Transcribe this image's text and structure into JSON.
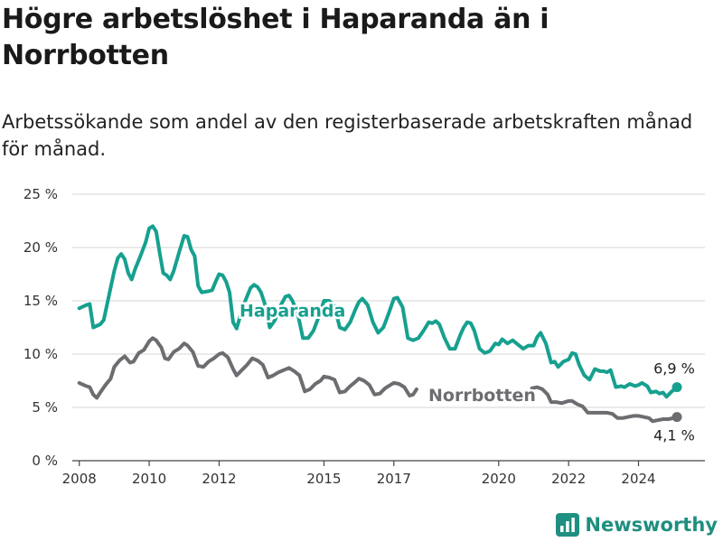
{
  "title": "Högre arbetslöshet i Haparanda än i Norrbotten",
  "subtitle": "Arbetssökande som andel av den registerbaserade arbetskraften månad för månad.",
  "brand": {
    "name": "Newsworthy",
    "icon": "bar-chart-logo-icon",
    "color": "#1e8f80"
  },
  "chart_data": {
    "type": "line",
    "title": "Högre arbetslöshet i Haparanda än i Norrbotten",
    "subtitle": "Arbetssökande som andel av den registerbaserade arbetskraften månad för månad.",
    "xlabel": "",
    "ylabel": "",
    "xlim": [
      2007.8,
      2025.9
    ],
    "ylim": [
      0,
      25
    ],
    "x_ticks": [
      2008,
      2010,
      2012,
      2015,
      2017,
      2020,
      2022,
      2024
    ],
    "y_ticks": [
      {
        "value": 0,
        "label": "0 %"
      },
      {
        "value": 5,
        "label": "5 %"
      },
      {
        "value": 10,
        "label": "10 %"
      },
      {
        "value": 15,
        "label": "15 %"
      },
      {
        "value": 20,
        "label": "20 %"
      },
      {
        "value": 25,
        "label": "25 %"
      }
    ],
    "grid": "horizontal",
    "legend": "direct labels",
    "series": [
      {
        "name": "Haparanda",
        "color": "#16a08f",
        "end_label": "6,9 %",
        "points": [
          [
            2008.0,
            14.3
          ],
          [
            2008.2,
            14.6
          ],
          [
            2008.3,
            14.7
          ],
          [
            2008.4,
            12.5
          ],
          [
            2008.6,
            12.8
          ],
          [
            2008.7,
            13.2
          ],
          [
            2008.85,
            15.5
          ],
          [
            2009.0,
            17.8
          ],
          [
            2009.1,
            19.0
          ],
          [
            2009.2,
            19.4
          ],
          [
            2009.3,
            18.9
          ],
          [
            2009.4,
            17.6
          ],
          [
            2009.5,
            17.0
          ],
          [
            2009.6,
            18.0
          ],
          [
            2009.75,
            19.2
          ],
          [
            2009.9,
            20.5
          ],
          [
            2010.0,
            21.8
          ],
          [
            2010.1,
            22.0
          ],
          [
            2010.2,
            21.5
          ],
          [
            2010.3,
            19.5
          ],
          [
            2010.4,
            17.6
          ],
          [
            2010.5,
            17.4
          ],
          [
            2010.6,
            17.0
          ],
          [
            2010.7,
            17.8
          ],
          [
            2010.85,
            19.5
          ],
          [
            2011.0,
            21.1
          ],
          [
            2011.1,
            21.0
          ],
          [
            2011.2,
            19.8
          ],
          [
            2011.3,
            19.2
          ],
          [
            2011.4,
            16.4
          ],
          [
            2011.5,
            15.8
          ],
          [
            2011.7,
            15.9
          ],
          [
            2011.8,
            16.0
          ],
          [
            2011.9,
            16.8
          ],
          [
            2012.0,
            17.5
          ],
          [
            2012.1,
            17.4
          ],
          [
            2012.2,
            16.8
          ],
          [
            2012.3,
            15.8
          ],
          [
            2012.4,
            13.0
          ],
          [
            2012.5,
            12.4
          ],
          [
            2012.6,
            13.5
          ],
          [
            2012.75,
            15.0
          ],
          [
            2012.9,
            16.2
          ],
          [
            2013.0,
            16.5
          ],
          [
            2013.1,
            16.3
          ],
          [
            2013.2,
            15.8
          ],
          [
            2013.3,
            14.8
          ],
          [
            2013.45,
            12.5
          ],
          [
            2013.6,
            13.2
          ],
          [
            2013.75,
            14.5
          ],
          [
            2013.9,
            15.4
          ],
          [
            2014.0,
            15.5
          ],
          [
            2014.1,
            15.0
          ],
          [
            2014.25,
            13.8
          ],
          [
            2014.4,
            11.5
          ],
          [
            2014.55,
            11.5
          ],
          [
            2014.7,
            12.2
          ],
          [
            2014.85,
            13.5
          ],
          [
            2015.0,
            15.0
          ],
          [
            2015.15,
            15.0
          ],
          [
            2015.3,
            14.5
          ],
          [
            2015.45,
            12.5
          ],
          [
            2015.6,
            12.3
          ],
          [
            2015.75,
            13.0
          ],
          [
            2015.9,
            14.2
          ],
          [
            2016.0,
            14.9
          ],
          [
            2016.1,
            15.2
          ],
          [
            2016.25,
            14.6
          ],
          [
            2016.4,
            13.0
          ],
          [
            2016.55,
            12.0
          ],
          [
            2016.7,
            12.5
          ],
          [
            2016.85,
            13.8
          ],
          [
            2017.0,
            15.2
          ],
          [
            2017.1,
            15.3
          ],
          [
            2017.25,
            14.4
          ],
          [
            2017.4,
            11.5
          ],
          [
            2017.55,
            11.3
          ],
          [
            2017.7,
            11.5
          ],
          [
            2017.85,
            12.2
          ],
          [
            2018.0,
            13.0
          ],
          [
            2018.1,
            12.9
          ],
          [
            2018.2,
            13.1
          ],
          [
            2018.3,
            12.8
          ],
          [
            2018.45,
            11.5
          ],
          [
            2018.6,
            10.5
          ],
          [
            2018.75,
            10.5
          ],
          [
            2018.9,
            11.8
          ],
          [
            2019.0,
            12.5
          ],
          [
            2019.1,
            13.0
          ],
          [
            2019.2,
            12.9
          ],
          [
            2019.3,
            12.2
          ],
          [
            2019.45,
            10.5
          ],
          [
            2019.6,
            10.1
          ],
          [
            2019.75,
            10.3
          ],
          [
            2019.9,
            11.0
          ],
          [
            2020.0,
            10.9
          ],
          [
            2020.1,
            11.4
          ],
          [
            2020.25,
            11.0
          ],
          [
            2020.4,
            11.3
          ],
          [
            2020.55,
            10.9
          ],
          [
            2020.7,
            10.5
          ],
          [
            2020.85,
            10.8
          ],
          [
            2021.0,
            10.8
          ],
          [
            2021.1,
            11.6
          ],
          [
            2021.2,
            12.0
          ],
          [
            2021.35,
            11.0
          ],
          [
            2021.5,
            9.2
          ],
          [
            2021.6,
            9.3
          ],
          [
            2021.7,
            8.8
          ],
          [
            2021.85,
            9.3
          ],
          [
            2022.0,
            9.5
          ],
          [
            2022.1,
            10.1
          ],
          [
            2022.2,
            10.0
          ],
          [
            2022.3,
            9.0
          ],
          [
            2022.45,
            8.0
          ],
          [
            2022.6,
            7.6
          ],
          [
            2022.75,
            8.6
          ],
          [
            2022.9,
            8.4
          ],
          [
            2023.0,
            8.4
          ],
          [
            2023.1,
            8.3
          ],
          [
            2023.2,
            8.5
          ],
          [
            2023.35,
            6.9
          ],
          [
            2023.5,
            7.0
          ],
          [
            2023.6,
            6.9
          ],
          [
            2023.75,
            7.2
          ],
          [
            2023.9,
            7.0
          ],
          [
            2024.0,
            7.1
          ],
          [
            2024.1,
            7.3
          ],
          [
            2024.25,
            7.0
          ],
          [
            2024.35,
            6.4
          ],
          [
            2024.5,
            6.5
          ],
          [
            2024.6,
            6.3
          ],
          [
            2024.7,
            6.4
          ],
          [
            2024.8,
            6.0
          ],
          [
            2024.95,
            6.5
          ],
          [
            2025.1,
            6.9
          ]
        ]
      },
      {
        "name": "Norrbotten",
        "color": "#6d6c71",
        "end_label": "4,1 %",
        "points": [
          [
            2008.0,
            7.3
          ],
          [
            2008.2,
            7.0
          ],
          [
            2008.3,
            6.9
          ],
          [
            2008.4,
            6.2
          ],
          [
            2008.5,
            5.9
          ],
          [
            2008.6,
            6.4
          ],
          [
            2008.75,
            7.1
          ],
          [
            2008.9,
            7.7
          ],
          [
            2009.0,
            8.8
          ],
          [
            2009.15,
            9.4
          ],
          [
            2009.3,
            9.8
          ],
          [
            2009.45,
            9.2
          ],
          [
            2009.55,
            9.3
          ],
          [
            2009.7,
            10.1
          ],
          [
            2009.85,
            10.4
          ],
          [
            2010.0,
            11.2
          ],
          [
            2010.1,
            11.5
          ],
          [
            2010.2,
            11.3
          ],
          [
            2010.35,
            10.6
          ],
          [
            2010.45,
            9.6
          ],
          [
            2010.55,
            9.5
          ],
          [
            2010.7,
            10.2
          ],
          [
            2010.85,
            10.5
          ],
          [
            2011.0,
            11.0
          ],
          [
            2011.1,
            10.8
          ],
          [
            2011.25,
            10.2
          ],
          [
            2011.4,
            8.9
          ],
          [
            2011.55,
            8.8
          ],
          [
            2011.7,
            9.3
          ],
          [
            2011.85,
            9.6
          ],
          [
            2012.0,
            10.0
          ],
          [
            2012.1,
            10.1
          ],
          [
            2012.25,
            9.7
          ],
          [
            2012.4,
            8.6
          ],
          [
            2012.5,
            8.0
          ],
          [
            2012.65,
            8.5
          ],
          [
            2012.8,
            9.0
          ],
          [
            2012.95,
            9.6
          ],
          [
            2013.1,
            9.4
          ],
          [
            2013.25,
            9.0
          ],
          [
            2013.4,
            7.8
          ],
          [
            2013.55,
            8.0
          ],
          [
            2013.7,
            8.3
          ],
          [
            2013.85,
            8.5
          ],
          [
            2014.0,
            8.7
          ],
          [
            2014.15,
            8.4
          ],
          [
            2014.3,
            8.0
          ],
          [
            2014.45,
            6.5
          ],
          [
            2014.6,
            6.7
          ],
          [
            2014.75,
            7.2
          ],
          [
            2014.9,
            7.5
          ],
          [
            2015.0,
            7.9
          ],
          [
            2015.15,
            7.8
          ],
          [
            2015.3,
            7.6
          ],
          [
            2015.45,
            6.4
          ],
          [
            2015.6,
            6.5
          ],
          [
            2015.75,
            7.0
          ],
          [
            2015.9,
            7.4
          ],
          [
            2016.0,
            7.7
          ],
          [
            2016.15,
            7.5
          ],
          [
            2016.3,
            7.1
          ],
          [
            2016.45,
            6.2
          ],
          [
            2016.6,
            6.3
          ],
          [
            2016.75,
            6.8
          ],
          [
            2016.9,
            7.1
          ],
          [
            2017.0,
            7.3
          ],
          [
            2017.15,
            7.2
          ],
          [
            2017.3,
            6.9
          ],
          [
            2017.45,
            6.1
          ],
          [
            2017.55,
            6.2
          ],
          [
            2017.65,
            6.7
          ],
          [
            2020.95,
            6.8
          ],
          [
            2021.1,
            6.9
          ],
          [
            2021.25,
            6.7
          ],
          [
            2021.4,
            6.2
          ],
          [
            2021.5,
            5.5
          ],
          [
            2021.65,
            5.5
          ],
          [
            2021.8,
            5.4
          ],
          [
            2022.0,
            5.6
          ],
          [
            2022.1,
            5.6
          ],
          [
            2022.25,
            5.3
          ],
          [
            2022.4,
            5.1
          ],
          [
            2022.55,
            4.5
          ],
          [
            2022.7,
            4.5
          ],
          [
            2022.85,
            4.5
          ],
          [
            2023.0,
            4.5
          ],
          [
            2023.1,
            4.5
          ],
          [
            2023.25,
            4.4
          ],
          [
            2023.4,
            4.0
          ],
          [
            2023.55,
            4.0
          ],
          [
            2023.7,
            4.1
          ],
          [
            2023.85,
            4.2
          ],
          [
            2024.0,
            4.2
          ],
          [
            2024.15,
            4.1
          ],
          [
            2024.3,
            4.0
          ],
          [
            2024.4,
            3.7
          ],
          [
            2024.55,
            3.8
          ],
          [
            2024.7,
            3.9
          ],
          [
            2024.85,
            3.9
          ],
          [
            2025.0,
            4.0
          ],
          [
            2025.1,
            4.1
          ]
        ]
      }
    ]
  }
}
